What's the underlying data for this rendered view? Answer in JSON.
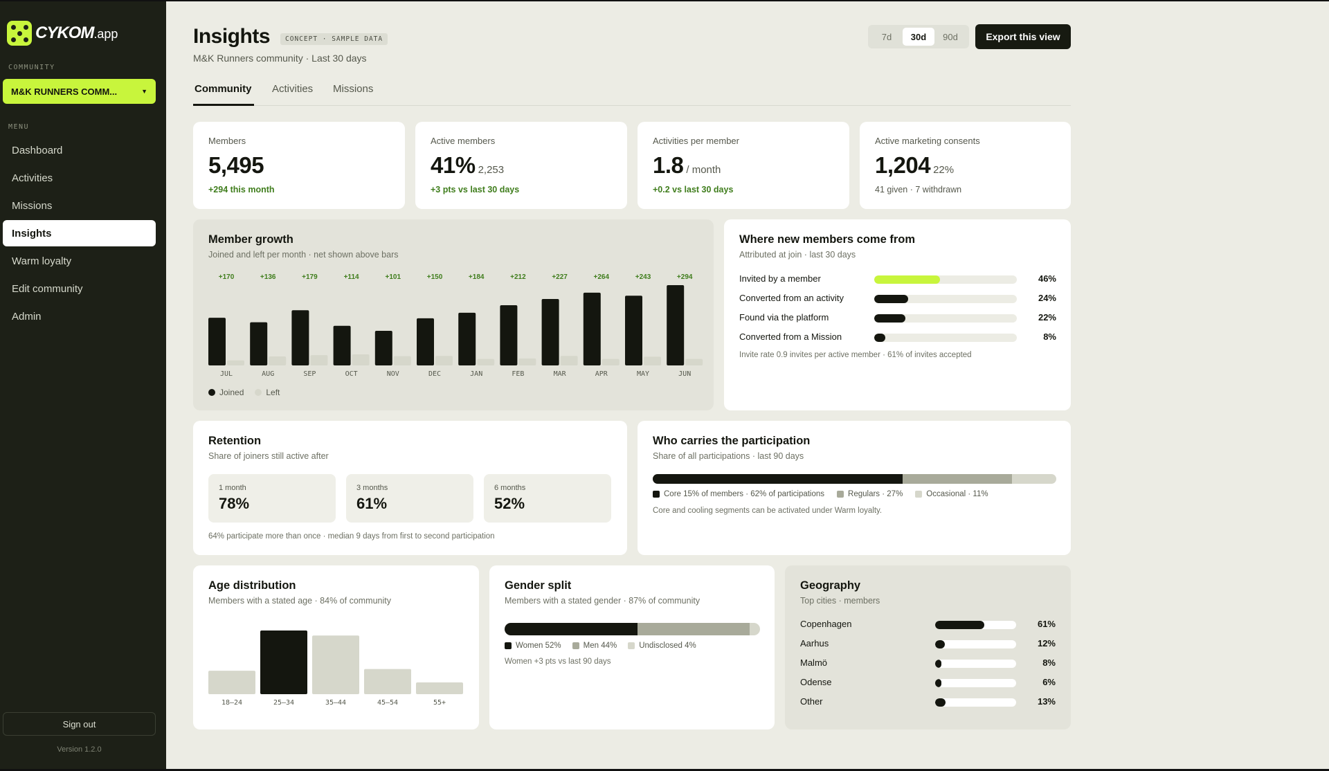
{
  "app": {
    "logo_text": "CYKOM",
    "logo_suffix": ".app",
    "version": "Version 1.2.0",
    "signout_label": "Sign out"
  },
  "colors": {
    "accent": "#c8f53c",
    "sidebar_bg": "#1d2017",
    "dark": "#14160f",
    "positive": "#3f7d1c",
    "mid_gray": "#a8aa9a",
    "light_gray": "#d6d7cb"
  },
  "sidebar": {
    "community_label": "COMMUNITY",
    "community_name": "M&K RUNNERS COMM...",
    "menu_label": "MENU",
    "items": [
      {
        "label": "Dashboard"
      },
      {
        "label": "Activities"
      },
      {
        "label": "Missions"
      },
      {
        "label": "Insights",
        "active": true
      },
      {
        "label": "Warm loyalty"
      },
      {
        "label": "Edit community"
      },
      {
        "label": "Admin"
      }
    ]
  },
  "header": {
    "title": "Insights",
    "badge": "CONCEPT · SAMPLE DATA",
    "subtitle": "M&K Runners community · Last 30 days",
    "ranges": [
      "7d",
      "30d",
      "90d"
    ],
    "selected_range": "30d",
    "export_label": "Export this view"
  },
  "tabs": [
    {
      "label": "Community",
      "active": true
    },
    {
      "label": "Activities"
    },
    {
      "label": "Missions"
    }
  ],
  "kpis": [
    {
      "label": "Members",
      "value": "5,495",
      "unit": "",
      "delta": "+294 this month"
    },
    {
      "label": "Active members",
      "value": "41%",
      "unit": "2,253",
      "delta": "+3 pts vs last 30 days"
    },
    {
      "label": "Activities per member",
      "value": "1.8",
      "unit": "/ month",
      "delta": "+0.2 vs last 30 days"
    },
    {
      "label": "Active marketing consents",
      "value": "1,204",
      "unit": "22%",
      "note": "41 given · 7 withdrawn"
    }
  ],
  "growth": {
    "title": "Member growth",
    "subtitle": "Joined and left per month · net shown above bars",
    "legend_joined": "Joined",
    "legend_left": "Left"
  },
  "chart_data": {
    "type": "bar",
    "categories": [
      "JUL",
      "AUG",
      "SEP",
      "OCT",
      "NOV",
      "DEC",
      "JAN",
      "FEB",
      "MAR",
      "APR",
      "MAY",
      "JUN"
    ],
    "series": [
      {
        "name": "Joined",
        "values": [
          190,
          172,
          220,
          158,
          138,
          188,
          210,
          240,
          265,
          290,
          278,
          320
        ]
      },
      {
        "name": "Left",
        "values": [
          20,
          36,
          41,
          44,
          37,
          38,
          26,
          28,
          38,
          26,
          35,
          26
        ]
      }
    ],
    "net_labels": [
      "+170",
      "+136",
      "+179",
      "+114",
      "+101",
      "+150",
      "+184",
      "+212",
      "+227",
      "+264",
      "+243",
      "+294"
    ],
    "ylim": [
      0,
      330
    ],
    "grid": false,
    "legend": "bottom-left"
  },
  "sources": {
    "title": "Where new members come from",
    "subtitle": "Attributed at join · last 30 days",
    "rows": [
      {
        "label": "Invited by a member",
        "pct": 46,
        "pct_label": "46%",
        "accent": true
      },
      {
        "label": "Converted from an activity",
        "pct": 24,
        "pct_label": "24%"
      },
      {
        "label": "Found via the platform",
        "pct": 22,
        "pct_label": "22%"
      },
      {
        "label": "Converted from a Mission",
        "pct": 8,
        "pct_label": "8%"
      }
    ],
    "footnote": "Invite rate 0.9 invites per active member · 61% of invites accepted"
  },
  "retention": {
    "title": "Retention",
    "subtitle": "Share of joiners still active after",
    "boxes": [
      {
        "label": "1 month",
        "value": "78%"
      },
      {
        "label": "3 months",
        "value": "61%"
      },
      {
        "label": "6 months",
        "value": "52%"
      }
    ],
    "footnote": "64% participate more than once · median 9 days from first to second participation"
  },
  "participation": {
    "title": "Who carries the participation",
    "subtitle": "Share of all participations · last 90 days",
    "segments": [
      {
        "label": "Core 15% of members · 62% of participations",
        "pct": 62,
        "color": "#14160f"
      },
      {
        "label": "Regulars · 27%",
        "pct": 27,
        "color": "#a8aa9a"
      },
      {
        "label": "Occasional · 11%",
        "pct": 11,
        "color": "#d6d7cb"
      }
    ],
    "footnote": "Core and cooling segments can be activated under Warm loyalty."
  },
  "age": {
    "title": "Age distribution",
    "subtitle": "Members with a stated age · 84% of community",
    "categories": [
      "18–24",
      "25–34",
      "35–44",
      "45–54",
      "55+"
    ],
    "values": [
      14,
      38,
      35,
      15,
      7
    ],
    "highlight_index": 1
  },
  "gender": {
    "title": "Gender split",
    "subtitle": "Members with a stated gender · 87% of community",
    "segments": [
      {
        "label": "Women 52%",
        "pct": 52,
        "color": "#14160f"
      },
      {
        "label": "Men 44%",
        "pct": 44,
        "color": "#a8aa9a"
      },
      {
        "label": "Undisclosed 4%",
        "pct": 4,
        "color": "#d6d7cb"
      }
    ],
    "footnote": "Women +3 pts vs last 90 days"
  },
  "geo": {
    "title": "Geography",
    "subtitle": "Top cities · members",
    "rows": [
      {
        "label": "Copenhagen",
        "pct": 61,
        "pct_label": "61%"
      },
      {
        "label": "Aarhus",
        "pct": 12,
        "pct_label": "12%"
      },
      {
        "label": "Malmö",
        "pct": 8,
        "pct_label": "8%"
      },
      {
        "label": "Odense",
        "pct": 6,
        "pct_label": "6%"
      },
      {
        "label": "Other",
        "pct": 13,
        "pct_label": "13%"
      }
    ]
  }
}
